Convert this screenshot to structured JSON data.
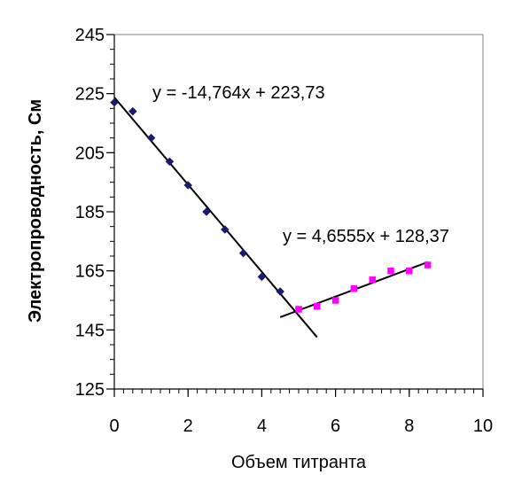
{
  "chart_data": {
    "type": "scatter",
    "title": "",
    "xlabel": "Объем титранта",
    "ylabel": "Электропроводность, См",
    "xlim": [
      0,
      10
    ],
    "ylim": [
      125,
      245
    ],
    "x_ticks": [
      "0",
      "2",
      "4",
      "6",
      "8",
      "10"
    ],
    "y_ticks": [
      "125",
      "145",
      "165",
      "185",
      "205",
      "225",
      "245"
    ],
    "x_tick_values": [
      0,
      2,
      4,
      6,
      8,
      10
    ],
    "y_tick_values": [
      125,
      145,
      165,
      185,
      205,
      225,
      245
    ],
    "x_minor_step": 0.25,
    "y_minor_step": 5,
    "grid": false,
    "legend": "none",
    "series": [
      {
        "marker": "diamond",
        "color": "#1a1a6e",
        "x": [
          0,
          0.5,
          1,
          1.5,
          2,
          2.5,
          3,
          3.5,
          4,
          4.5
        ],
        "y": [
          222,
          219,
          210,
          202,
          194,
          185,
          179,
          171,
          163,
          158
        ]
      },
      {
        "marker": "square",
        "color": "#ff00ff",
        "x": [
          5,
          5.5,
          6,
          6.5,
          7,
          7.5,
          8,
          8.5
        ],
        "y": [
          152,
          153,
          155,
          159,
          162,
          165,
          165,
          167
        ]
      }
    ],
    "trendlines": [
      {
        "slope": -14.764,
        "intercept": 223.73,
        "x_range": [
          0,
          5.5
        ],
        "equation": "y = -14,764x + 223,73"
      },
      {
        "slope": 4.6555,
        "intercept": 128.37,
        "x_range": [
          4.5,
          8.5
        ],
        "equation": "y = 4,6555x + 128,37"
      }
    ]
  }
}
